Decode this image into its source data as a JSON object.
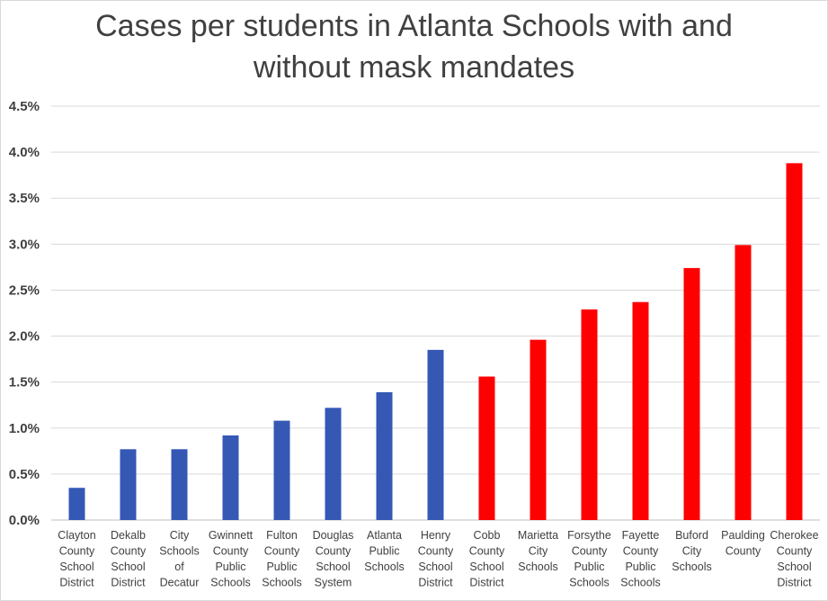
{
  "chart_data": {
    "type": "bar",
    "title": "Cases per students in Atlanta Schools with and without mask mandates",
    "title_lines": [
      "Cases per students in Atlanta Schools with and",
      "without mask mandates"
    ],
    "categories": [
      "Clayton County School District",
      "Dekalb County School District",
      "City Schools of Decatur",
      "Gwinnett County Public Schools",
      "Fulton County Public Schools",
      "Douglas County School System",
      "Atlanta Public Schools",
      "Henry County School District",
      "Cobb County School District",
      "Marietta City Schools",
      "Forsythe County Public Schools",
      "Fayette County Public Schools",
      "Buford City Schools",
      "Paulding County",
      "Cherokee County School District"
    ],
    "category_label_lines": [
      [
        "Clayton",
        "County",
        "School",
        "District"
      ],
      [
        "Dekalb",
        "County",
        "School",
        "District"
      ],
      [
        "City",
        "Schools",
        "of",
        "Decatur"
      ],
      [
        "Gwinnett",
        "County",
        "Public",
        "Schools"
      ],
      [
        "Fulton",
        "County",
        "Public",
        "Schools"
      ],
      [
        "Douglas",
        "County",
        "School",
        "System"
      ],
      [
        "Atlanta",
        "Public",
        "Schools"
      ],
      [
        "Henry",
        "County",
        "School",
        "District"
      ],
      [
        "Cobb",
        "County",
        "School",
        "District"
      ],
      [
        "Marietta",
        "City",
        "Schools"
      ],
      [
        "Forsythe",
        "County",
        "Public",
        "Schools"
      ],
      [
        "Fayette",
        "County",
        "Public",
        "Schools"
      ],
      [
        "Buford",
        "City",
        "Schools"
      ],
      [
        "Paulding",
        "County"
      ],
      [
        "Cherokee",
        "County",
        "School",
        "District"
      ]
    ],
    "values": [
      0.35,
      0.77,
      0.77,
      0.92,
      1.08,
      1.22,
      1.39,
      1.85,
      1.56,
      1.96,
      2.29,
      2.37,
      2.74,
      2.99,
      3.88
    ],
    "colors": [
      "#3558b5",
      "#3558b5",
      "#3558b5",
      "#3558b5",
      "#3558b5",
      "#3558b5",
      "#3558b5",
      "#3558b5",
      "#ff0000",
      "#ff0000",
      "#ff0000",
      "#ff0000",
      "#ff0000",
      "#ff0000",
      "#ff0000"
    ],
    "ylim": [
      0,
      4.5
    ],
    "yticks": [
      0,
      0.5,
      1.0,
      1.5,
      2.0,
      2.5,
      3.0,
      3.5,
      4.0,
      4.5
    ],
    "ytick_labels": [
      "0.0%",
      "0.5%",
      "1.0%",
      "1.5%",
      "2.0%",
      "2.5%",
      "3.0%",
      "3.5%",
      "4.0%",
      "4.5%"
    ],
    "grid": true,
    "legend": "none",
    "xlabel": "",
    "ylabel": ""
  }
}
